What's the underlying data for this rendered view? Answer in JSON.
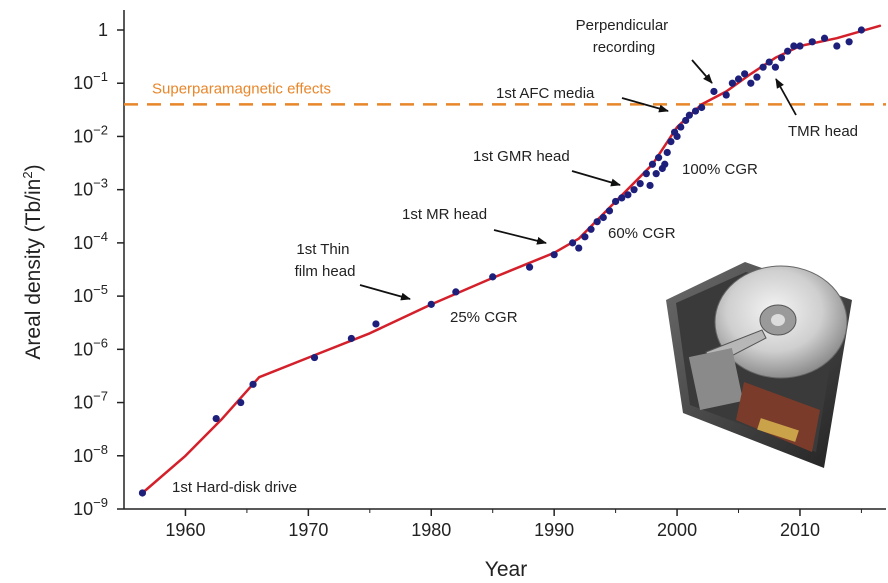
{
  "chart_data": {
    "type": "scatter",
    "title": "",
    "xlabel": "Year",
    "ylabel_main": "Areal density (Tb/in",
    "ylabel_sup": "2",
    "ylabel_end": ")",
    "y_scale": "log",
    "xlim": [
      1955,
      2017
    ],
    "ylim": [
      1e-09,
      2
    ],
    "x_ticks": [
      1960,
      1970,
      1980,
      1990,
      2000,
      2010
    ],
    "y_ticks": [
      {
        "value": 1e-09,
        "base": "10",
        "exp": "−9"
      },
      {
        "value": 1e-08,
        "base": "10",
        "exp": "−8"
      },
      {
        "value": 1e-07,
        "base": "10",
        "exp": "−7"
      },
      {
        "value": 1e-06,
        "base": "10",
        "exp": "−6"
      },
      {
        "value": 1e-05,
        "base": "10",
        "exp": "−5"
      },
      {
        "value": 0.0001,
        "base": "10",
        "exp": "−4"
      },
      {
        "value": 0.001,
        "base": "10",
        "exp": "−3"
      },
      {
        "value": 0.01,
        "base": "10",
        "exp": "−2"
      },
      {
        "value": 0.1,
        "base": "10",
        "exp": "−1"
      },
      {
        "value": 1,
        "base": "1",
        "exp": ""
      }
    ],
    "reference_line": {
      "label": "Superparamagnetic effects",
      "value": 0.04,
      "color": "#e8862a"
    },
    "trend_line": {
      "color": "#d4202a",
      "points": [
        [
          1956.5,
          2e-09
        ],
        [
          1960,
          1e-08
        ],
        [
          1963,
          5e-08
        ],
        [
          1966,
          3e-07
        ],
        [
          1970,
          7e-07
        ],
        [
          1975,
          2e-06
        ],
        [
          1980,
          7e-06
        ],
        [
          1985,
          2.2e-05
        ],
        [
          1990,
          6.5e-05
        ],
        [
          1992,
          0.00012
        ],
        [
          1995,
          0.0006
        ],
        [
          1998,
          0.003
        ],
        [
          2000,
          0.015
        ],
        [
          2002,
          0.04
        ],
        [
          2004,
          0.07
        ],
        [
          2006,
          0.15
        ],
        [
          2008,
          0.3
        ],
        [
          2010,
          0.5
        ],
        [
          2013,
          0.7
        ],
        [
          2016.5,
          1.2
        ]
      ]
    },
    "point_color": "#1d1f7a",
    "points": [
      [
        1956.5,
        2e-09
      ],
      [
        1962.5,
        5e-08
      ],
      [
        1964.5,
        1e-07
      ],
      [
        1965.5,
        2.2e-07
      ],
      [
        1970.5,
        7e-07
      ],
      [
        1973.5,
        1.6e-06
      ],
      [
        1975.5,
        3e-06
      ],
      [
        1980,
        7e-06
      ],
      [
        1982,
        1.2e-05
      ],
      [
        1985,
        2.3e-05
      ],
      [
        1988,
        3.5e-05
      ],
      [
        1990,
        6e-05
      ],
      [
        1991.5,
        0.0001
      ],
      [
        1992,
        8e-05
      ],
      [
        1992.5,
        0.00013
      ],
      [
        1993,
        0.00018
      ],
      [
        1993.5,
        0.00025
      ],
      [
        1994,
        0.0003
      ],
      [
        1994.5,
        0.0004
      ],
      [
        1995,
        0.0006
      ],
      [
        1995.5,
        0.0007
      ],
      [
        1996,
        0.0008
      ],
      [
        1996.5,
        0.001
      ],
      [
        1997,
        0.0013
      ],
      [
        1997.5,
        0.002
      ],
      [
        1997.8,
        0.0012
      ],
      [
        1998,
        0.003
      ],
      [
        1998.3,
        0.002
      ],
      [
        1998.5,
        0.004
      ],
      [
        1998.8,
        0.0025
      ],
      [
        1999,
        0.003
      ],
      [
        1999.2,
        0.005
      ],
      [
        1999.5,
        0.008
      ],
      [
        1999.8,
        0.012
      ],
      [
        2000,
        0.01
      ],
      [
        2000.3,
        0.015
      ],
      [
        2000.7,
        0.02
      ],
      [
        2001,
        0.025
      ],
      [
        2001.5,
        0.03
      ],
      [
        2002,
        0.035
      ],
      [
        2003,
        0.07
      ],
      [
        2004,
        0.06
      ],
      [
        2004.5,
        0.1
      ],
      [
        2005,
        0.12
      ],
      [
        2005.5,
        0.15
      ],
      [
        2006,
        0.1
      ],
      [
        2006.5,
        0.13
      ],
      [
        2007,
        0.2
      ],
      [
        2007.5,
        0.25
      ],
      [
        2008,
        0.2
      ],
      [
        2008.5,
        0.3
      ],
      [
        2009,
        0.4
      ],
      [
        2009.5,
        0.5
      ],
      [
        2010,
        0.5
      ],
      [
        2011,
        0.6
      ],
      [
        2012,
        0.7
      ],
      [
        2013,
        0.5
      ],
      [
        2014,
        0.6
      ],
      [
        2015,
        1.0
      ]
    ],
    "annotations": [
      {
        "lines": [
          "1st Hard-disk drive"
        ]
      },
      {
        "lines": [
          "1st Thin",
          "film head"
        ]
      },
      {
        "lines": [
          "1st MR head"
        ]
      },
      {
        "lines": [
          "1st GMR head"
        ]
      },
      {
        "lines": [
          "1st AFC media"
        ]
      },
      {
        "lines": [
          "Perpendicular",
          "recording"
        ]
      },
      {
        "lines": [
          "TMR head"
        ]
      },
      {
        "lines": [
          "25% CGR"
        ]
      },
      {
        "lines": [
          "60% CGR"
        ]
      },
      {
        "lines": [
          "100% CGR"
        ]
      }
    ]
  }
}
